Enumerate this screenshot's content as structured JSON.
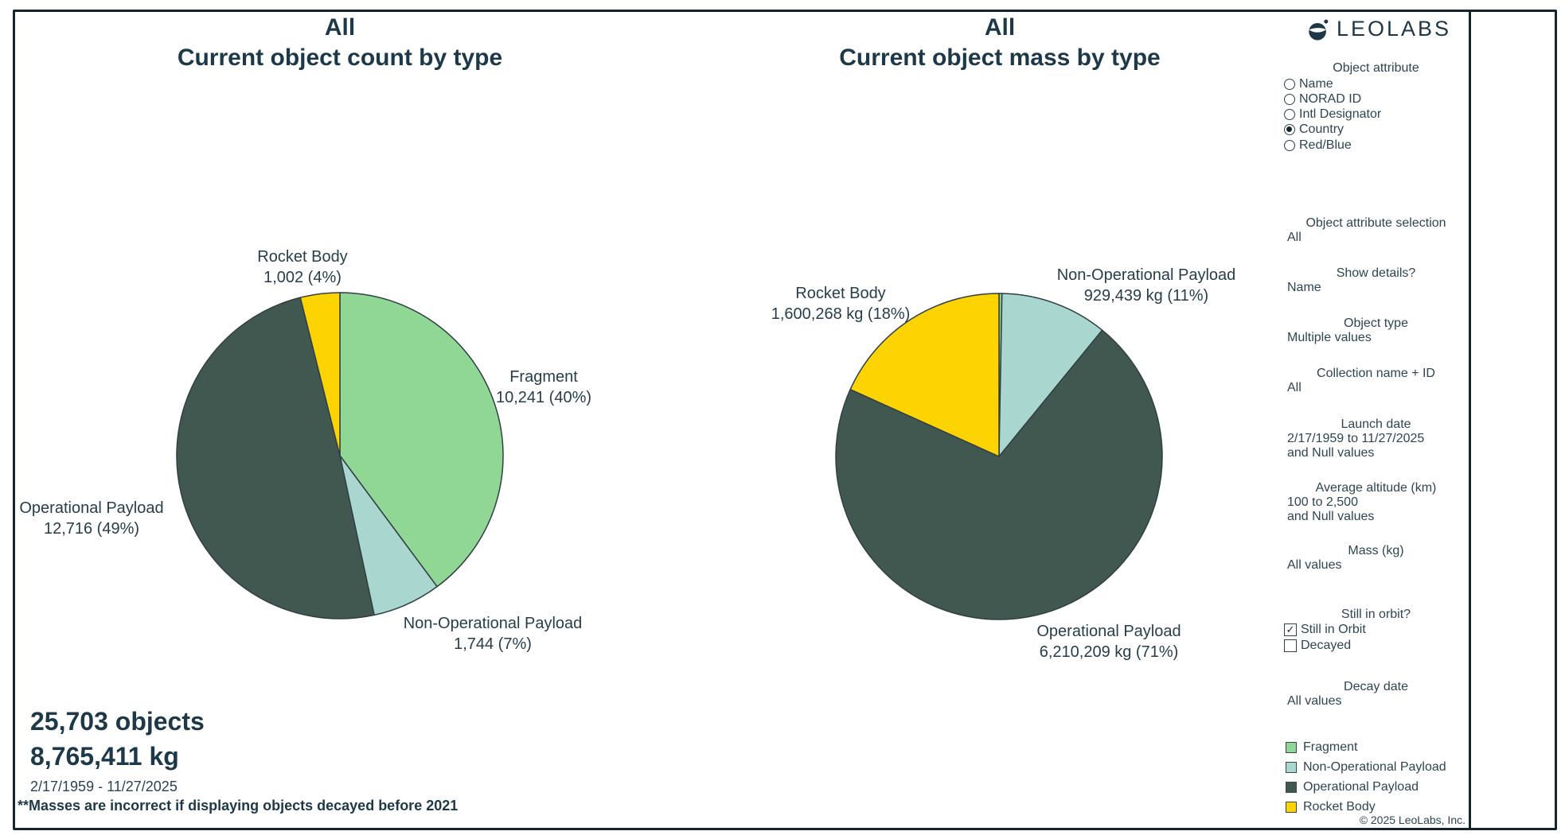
{
  "page": {
    "copyright": "© 2025 LeoLabs, Inc.",
    "border_color": "#16242e",
    "text_color": "#1d3949",
    "background": "#ffffff"
  },
  "logo": {
    "text": "LEOLABS"
  },
  "chart_data": [
    {
      "type": "pie",
      "title": "All",
      "subtitle": "Current object count by type",
      "value_unit": "objects",
      "total": 25703,
      "total_display": "25,703 objects",
      "start_angle": "12 o'clock, clockwise",
      "legend_position": "right sidebar bottom",
      "slices": [
        {
          "label": "Fragment",
          "value": 10241,
          "percent": 40,
          "display": "10,241 (40%)",
          "color": "#90d796"
        },
        {
          "label": "Non-Operational Payload",
          "value": 1744,
          "percent": 7,
          "display": "1,744 (7%)",
          "color": "#a9d7d0"
        },
        {
          "label": "Operational Payload",
          "value": 12716,
          "percent": 49,
          "display": "12,716 (49%)",
          "color": "#40584f"
        },
        {
          "label": "Rocket Body",
          "value": 1002,
          "percent": 4,
          "display": "1,002 (4%)",
          "color": "#fdd301"
        }
      ]
    },
    {
      "type": "pie",
      "title": "All",
      "subtitle": "Current object mass by type",
      "value_unit": "kg",
      "total": 8765411,
      "total_display": "8,765,411 kg",
      "start_angle": "12 o'clock, clockwise",
      "legend_position": "right sidebar bottom",
      "slices": [
        {
          "label": "Fragment",
          "value": 25495,
          "display": "",
          "color": "#90d796"
        },
        {
          "label": "Non-Operational Payload",
          "value": 929439,
          "percent": 11,
          "display": "929,439 kg (11%)",
          "color": "#a9d7d0"
        },
        {
          "label": "Operational Payload",
          "value": 6210209,
          "percent": 71,
          "display": "6,210,209 kg (71%)",
          "color": "#40584f"
        },
        {
          "label": "Rocket Body",
          "value": 1600268,
          "percent": 18,
          "display": "1,600,268 kg (18%)",
          "color": "#fdd301"
        }
      ]
    }
  ],
  "summary": {
    "objects_display": "25,703 objects",
    "mass_display": "8,765,411 kg",
    "date_range": "2/17/1959 - 11/27/2025",
    "footnote": "**Masses are incorrect if displaying objects decayed before 2021"
  },
  "sidebar": {
    "object_attribute": {
      "heading": "Object attribute",
      "options": [
        {
          "label": "Name",
          "selected": false
        },
        {
          "label": "NORAD ID",
          "selected": false
        },
        {
          "label": "Intl Designator",
          "selected": false
        },
        {
          "label": "Country",
          "selected": true
        },
        {
          "label": "Red/Blue",
          "selected": false
        }
      ]
    },
    "sections": [
      {
        "heading": "Object attribute selection",
        "lines": [
          "All"
        ]
      },
      {
        "heading": "Show details?",
        "lines": [
          "Name"
        ]
      },
      {
        "heading": "Object type",
        "lines": [
          "Multiple values"
        ]
      },
      {
        "heading": "Collection name + ID",
        "lines": [
          "All"
        ]
      },
      {
        "heading": "Launch date",
        "lines": [
          "2/17/1959 to 11/27/2025",
          "and Null values"
        ]
      },
      {
        "heading": "Average altitude (km)",
        "lines": [
          "100 to 2,500",
          "and Null values"
        ]
      },
      {
        "heading": "Mass (kg)",
        "lines": [
          "All values"
        ]
      },
      {
        "heading": "Decay date",
        "lines": [
          "All values"
        ]
      }
    ],
    "still_in_orbit": {
      "heading": "Still in orbit?",
      "options": [
        {
          "label": "Still in Orbit",
          "checked": true
        },
        {
          "label": "Decayed",
          "checked": false
        }
      ]
    },
    "legend": {
      "items": [
        {
          "label": "Fragment",
          "color": "#90d796"
        },
        {
          "label": "Non-Operational Payload",
          "color": "#a9d7d0"
        },
        {
          "label": "Operational Payload",
          "color": "#40584f"
        },
        {
          "label": "Rocket Body",
          "color": "#fdd301"
        }
      ]
    }
  }
}
